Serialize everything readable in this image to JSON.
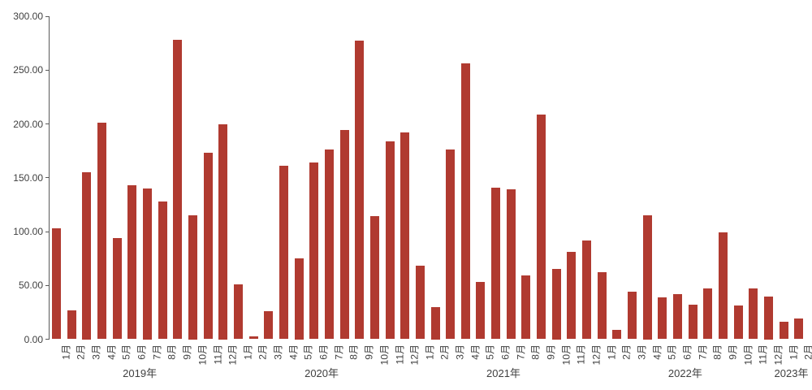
{
  "chart_data": {
    "type": "bar",
    "title": "",
    "xlabel": "",
    "ylabel": "",
    "ylim": [
      0,
      300
    ],
    "y_tick_step": 50,
    "y_tick_labels": [
      "300.00",
      "250.00",
      "200.00",
      "150.00",
      "100.00",
      "50.00",
      "0.00"
    ],
    "grid": false,
    "legend": null,
    "bar_color": "#B03A30",
    "axis_color": "#595959",
    "label_color": "#3f3f3f",
    "background_color": "#ffffff",
    "groups": [
      {
        "year": "2019年",
        "months": [
          "1月",
          "2月",
          "3月",
          "4月",
          "5月",
          "6月",
          "7月",
          "8月",
          "9月",
          "10月",
          "11月",
          "12月"
        ],
        "values": [
          103,
          27,
          155,
          201,
          94,
          143,
          140,
          128,
          278,
          115,
          173,
          200
        ]
      },
      {
        "year": "2020年",
        "months": [
          "1月",
          "2月",
          "3月",
          "4月",
          "5月",
          "6月",
          "7月",
          "8月",
          "9月",
          "10月",
          "11月",
          "12月"
        ],
        "values": [
          51,
          3,
          26,
          161,
          75,
          164,
          176,
          194,
          277,
          114,
          184,
          192
        ]
      },
      {
        "year": "2021年",
        "months": [
          "1月",
          "2月",
          "3月",
          "4月",
          "5月",
          "6月",
          "7月",
          "8月",
          "9月",
          "10月",
          "11月",
          "12月"
        ],
        "values": [
          68,
          30,
          176,
          256,
          53,
          141,
          139,
          59,
          209,
          65,
          81,
          92
        ]
      },
      {
        "year": "2022年",
        "months": [
          "1月",
          "2月",
          "3月",
          "4月",
          "5月",
          "6月",
          "7月",
          "8月",
          "9月",
          "10月",
          "11月",
          "12月"
        ],
        "values": [
          62,
          9,
          44,
          115,
          39,
          42,
          32,
          47,
          99,
          31,
          47,
          40
        ]
      },
      {
        "year": "2023年",
        "months": [
          "1月",
          "2月"
        ],
        "values": [
          16,
          19
        ]
      }
    ]
  }
}
